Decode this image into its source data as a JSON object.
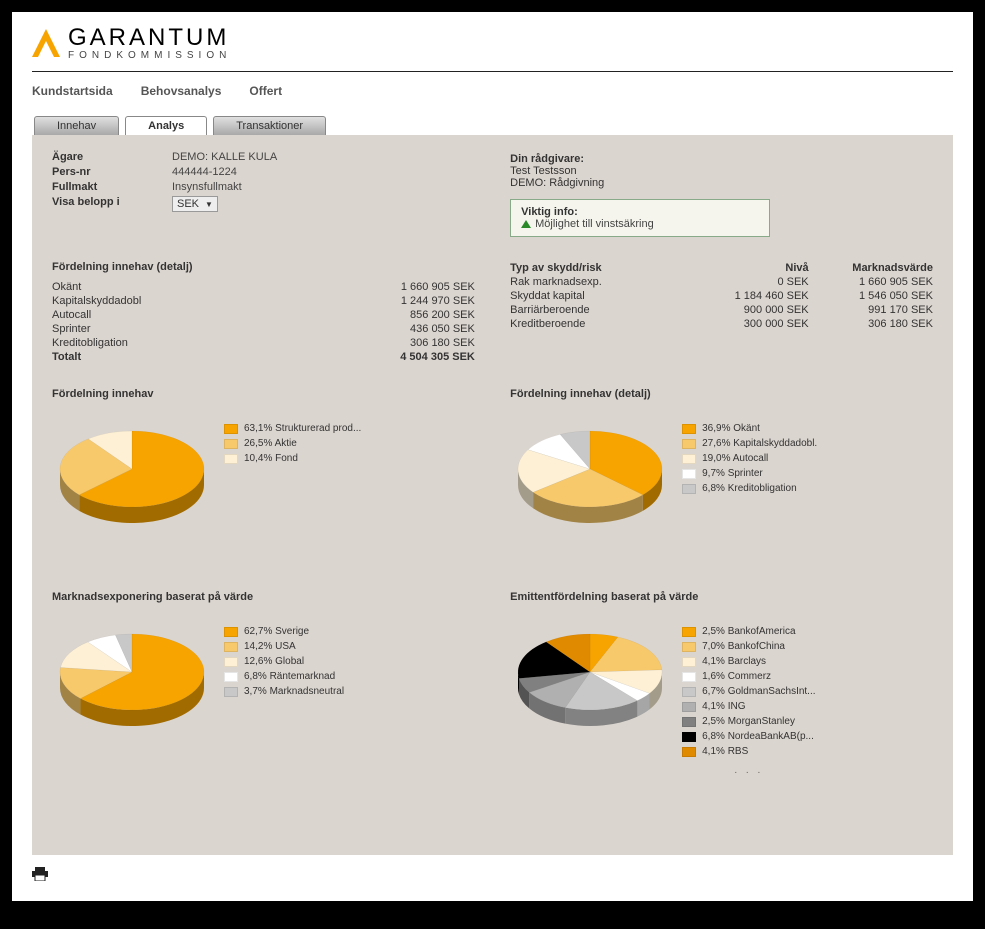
{
  "logo": {
    "name": "GARANTUM",
    "sub": "FONDKOMMISSION",
    "mark_color": "#f7a400"
  },
  "top_nav": [
    "Kundstartsida",
    "Behovsanalys",
    "Offert"
  ],
  "tabs": [
    {
      "label": "Innehav",
      "active": false
    },
    {
      "label": "Analys",
      "active": true
    },
    {
      "label": "Transaktioner",
      "active": false
    }
  ],
  "owner": {
    "labels": {
      "agare": "Ägare",
      "persnr": "Pers-nr",
      "fullmakt": "Fullmakt",
      "visa": "Visa belopp i"
    },
    "agare": "DEMO: KALLE KULA",
    "persnr": "444444-1224",
    "fullmakt": "Insynsfullmakt",
    "currency": "SEK"
  },
  "advisor": {
    "title": "Din rådgivare:",
    "name": "Test Testsson",
    "role": "DEMO: Rådgivning"
  },
  "viktig": {
    "title": "Viktig info:",
    "text": "Möjlighet till vinstsäkring"
  },
  "fordelning_detalj": {
    "title": "Fördelning innehav (detalj)",
    "rows": [
      {
        "name": "Okänt",
        "value": "1 660 905 SEK"
      },
      {
        "name": "Kapitalskyddadobl",
        "value": "1 244 970 SEK"
      },
      {
        "name": "Autocall",
        "value": "856 200 SEK"
      },
      {
        "name": "Sprinter",
        "value": "436 050 SEK"
      },
      {
        "name": "Kreditobligation",
        "value": "306 180 SEK"
      }
    ],
    "total_label": "Totalt",
    "total_value": "4 504 305 SEK"
  },
  "skydd": {
    "headers": {
      "c1": "Typ av skydd/risk",
      "c2": "Nivå",
      "c3": "Marknadsvärde"
    },
    "rows": [
      {
        "c1": "Rak marknadsexp.",
        "c2": "0 SEK",
        "c3": "1 660 905 SEK"
      },
      {
        "c1": "Skyddat kapital",
        "c2": "1 184 460 SEK",
        "c3": "1 546 050 SEK"
      },
      {
        "c1": "Barriärberoende",
        "c2": "900 000 SEK",
        "c3": "991 170 SEK"
      },
      {
        "c1": "Kreditberoende",
        "c2": "300 000 SEK",
        "c3": "306 180 SEK"
      }
    ]
  },
  "pie1": {
    "title": "Fördelning innehav",
    "slices": [
      {
        "label": "63,1% Strukturerad prod...",
        "value": 63.1,
        "color": "#f7a400"
      },
      {
        "label": "26,5% Aktie",
        "value": 26.5,
        "color": "#f8c96b"
      },
      {
        "label": "10,4% Fond",
        "value": 10.4,
        "color": "#fdf0d5"
      }
    ]
  },
  "pie2": {
    "title": "Fördelning innehav (detalj)",
    "slices": [
      {
        "label": "36,9% Okänt",
        "value": 36.9,
        "color": "#f7a400"
      },
      {
        "label": "27,6% Kapitalskyddadobl.",
        "value": 27.6,
        "color": "#f8c96b"
      },
      {
        "label": "19,0% Autocall",
        "value": 19.0,
        "color": "#fdf0d5"
      },
      {
        "label": "9,7% Sprinter",
        "value": 9.7,
        "color": "#ffffff"
      },
      {
        "label": "6,8% Kreditobligation",
        "value": 6.8,
        "color": "#c8c8c8"
      }
    ]
  },
  "pie3": {
    "title": "Marknadsexponering baserat på värde",
    "slices": [
      {
        "label": "62,7% Sverige",
        "value": 62.7,
        "color": "#f7a400"
      },
      {
        "label": "14,2% USA",
        "value": 14.2,
        "color": "#f8c96b"
      },
      {
        "label": "12,6% Global",
        "value": 12.6,
        "color": "#fdf0d5"
      },
      {
        "label": "6,8% Räntemarknad",
        "value": 6.8,
        "color": "#ffffff"
      },
      {
        "label": "3,7% Marknadsneutral",
        "value": 3.7,
        "color": "#c8c8c8"
      }
    ]
  },
  "pie4": {
    "title": "Emittentfördelning baserat på värde",
    "slices": [
      {
        "label": "2,5% BankofAmerica",
        "value": 2.5,
        "color": "#f7a400"
      },
      {
        "label": "7,0% BankofChina",
        "value": 7.0,
        "color": "#f8c96b"
      },
      {
        "label": "4,1% Barclays",
        "value": 4.1,
        "color": "#fdf0d5"
      },
      {
        "label": "1,6% Commerz",
        "value": 1.6,
        "color": "#ffffff"
      },
      {
        "label": "6,7% GoldmanSachsInt...",
        "value": 6.7,
        "color": "#c8c8c8"
      },
      {
        "label": "4,1% ING",
        "value": 4.1,
        "color": "#b0b0b0"
      },
      {
        "label": "2,5% MorganStanley",
        "value": 2.5,
        "color": "#808080"
      },
      {
        "label": "6,8% NordeaBankAB(p...",
        "value": 6.8,
        "color": "#000000"
      },
      {
        "label": "4,1% RBS",
        "value": 4.1,
        "color": "#e08a00"
      }
    ],
    "more_dots": ". . ."
  }
}
